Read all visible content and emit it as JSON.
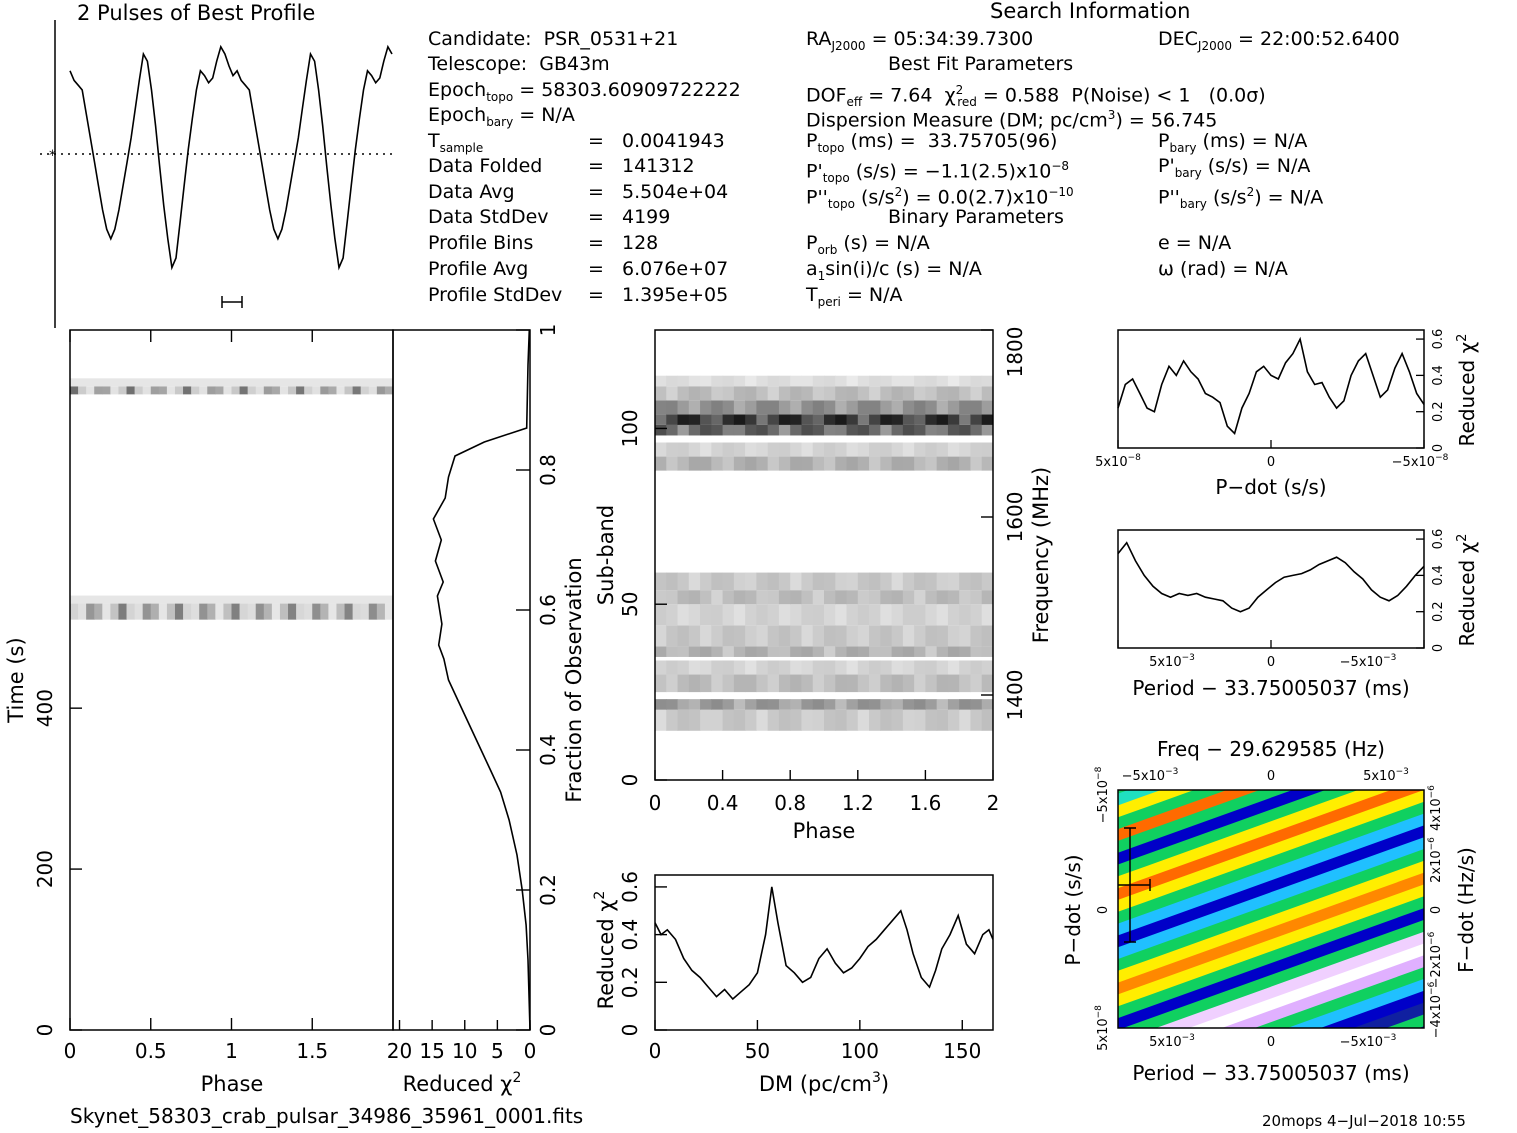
{
  "title": "2 Pulses of Best Profile",
  "search_heading": "Search Information",
  "best_fit_heading": "Best Fit Parameters",
  "binary_heading": "Binary Parameters",
  "candidate": {
    "label": "Candidate:",
    "value": "PSR_0531+21"
  },
  "telescope": {
    "label": "Telescope:",
    "value": "GB43m"
  },
  "epoch_topo": {
    "label": "Epoch",
    "sub": "topo",
    "value": "= 58303.60909722222"
  },
  "epoch_bary": {
    "label": "Epoch",
    "sub": "bary",
    "value": "= N/A"
  },
  "left_params": [
    {
      "label": "T",
      "sub": "sample",
      "eq": "=",
      "value": "0.0041943"
    },
    {
      "label": "Data Folded",
      "sub": "",
      "eq": "=",
      "value": "141312"
    },
    {
      "label": "Data Avg",
      "sub": "",
      "eq": "=",
      "value": "5.504e+04"
    },
    {
      "label": "Data StdDev",
      "sub": "",
      "eq": "=",
      "value": "4199"
    },
    {
      "label": "Profile Bins",
      "sub": "",
      "eq": "=",
      "value": "128"
    },
    {
      "label": "Profile Avg",
      "sub": "",
      "eq": "=",
      "value": "6.076e+07"
    },
    {
      "label": "Profile StdDev",
      "sub": "",
      "eq": "=",
      "value": "1.395e+05"
    }
  ],
  "ra": {
    "label": "RA",
    "sub": "J2000",
    "value": "= 05:34:39.7300"
  },
  "dec": {
    "label": "DEC",
    "sub": "J2000",
    "value": "= 22:00:52.6400"
  },
  "dof": {
    "label": "DOF",
    "sub": "eff",
    "value": "= 7.64"
  },
  "chi2": {
    "label": "χ",
    "sup": "2",
    "sub": "red",
    "value": "= 0.588"
  },
  "pnoise": "P(Noise) < 1   (0.0σ)",
  "dm_line": {
    "text": "Dispersion Measure (DM; pc/cm",
    "sup": "3",
    "tail": ") = 56.745"
  },
  "p_topo": {
    "label": "P",
    "sub": "topo",
    "value": "(ms) =  33.75705(96)"
  },
  "pd_topo": {
    "label": "P'",
    "sub": "topo",
    "value": "(s/s) = −1.1(2.5)x10",
    "exp": "−8"
  },
  "pdd_topo": {
    "label": "P''",
    "sub": "topo",
    "value": "(s/s",
    "vsup": "2",
    "tail": ") = 0.0(2.7)x10",
    "exp": "−10"
  },
  "p_bary": {
    "label": "P",
    "sub": "bary",
    "value": "(ms) = N/A"
  },
  "pd_bary": {
    "label": "P'",
    "sub": "bary",
    "value": "(s/s) = N/A"
  },
  "pdd_bary": {
    "label": "P''",
    "sub": "bary",
    "value": "(s/s",
    "vsup": "2",
    "tail": ") = N/A"
  },
  "p_orb": {
    "label": "P",
    "sub": "orb",
    "value": "(s) = N/A"
  },
  "a1sini": {
    "text": "a",
    "sub": "1",
    "tail": "sin(i)/c (s) = N/A"
  },
  "t_peri": {
    "label": "T",
    "sub": "peri",
    "value": "= N/A"
  },
  "ecc": "e = N/A",
  "omega": "ω (rad) = N/A",
  "footer_file": "Skynet_58303_crab_pulsar_34986_35961_0001.fits",
  "footer_stamp": "20mops   4−Jul−2018 10:55",
  "colors": {
    "ink": "#000000",
    "grid_blue": "#0000c8",
    "grid_orange": "#ff6a00",
    "grid_green": "#10d060"
  },
  "chart_data": [
    {
      "type": "line",
      "name": "profile",
      "title": "2 Pulses of Best Profile",
      "x_range": [
        0,
        2
      ],
      "note": "pulse profile repeated twice; dotted line marks average",
      "values": [
        0.88,
        0.84,
        0.82,
        0.8,
        0.7,
        0.6,
        0.5,
        0.4,
        0.3,
        0.22,
        0.18,
        0.22,
        0.3,
        0.4,
        0.5,
        0.6,
        0.72,
        0.84,
        0.95,
        0.92,
        0.8,
        0.65,
        0.48,
        0.32,
        0.18,
        0.06,
        0.1,
        0.25,
        0.4,
        0.55,
        0.68,
        0.8,
        0.88,
        0.86,
        0.83,
        0.85,
        0.92,
        0.98,
        0.95,
        0.9,
        0.86,
        0.88,
        0.84,
        0.82,
        0.8,
        0.7,
        0.6,
        0.5,
        0.4,
        0.3,
        0.22,
        0.18,
        0.22,
        0.3,
        0.4,
        0.5,
        0.6,
        0.72,
        0.84,
        0.95,
        0.92,
        0.8,
        0.65,
        0.48,
        0.32,
        0.18,
        0.06,
        0.1,
        0.25,
        0.4,
        0.55,
        0.68,
        0.8,
        0.88,
        0.86,
        0.83,
        0.85,
        0.92,
        0.98,
        0.95
      ]
    },
    {
      "type": "heatmap",
      "name": "time-phase",
      "xlabel": "Phase",
      "ylabel": "Time (s)",
      "xlim": [
        0,
        2
      ],
      "ylim": [
        0,
        870
      ],
      "x_ticks": [
        "0",
        "0.5",
        "1",
        "1.5"
      ],
      "y_ticks": [
        "0",
        "200",
        "400"
      ],
      "dark_bands_time": [
        [
          790,
          800
        ],
        [
          510,
          530
        ]
      ]
    },
    {
      "type": "line",
      "name": "reduced-chi2-vs-time",
      "xlabel": "Reduced χ",
      "xlabel_sup": "2",
      "ylabel": "Fraction of Observation",
      "x_ticks": [
        "20",
        "15",
        "10",
        "5",
        "0"
      ],
      "y_ticks": [
        "0",
        "0.2",
        "0.4",
        "0.6",
        "0.8",
        "1"
      ],
      "x": [
        0,
        0.3,
        0.6,
        1.2,
        2.0,
        3.2,
        4.5,
        6.0,
        7.5,
        9.0,
        10.5,
        11.5,
        12.5,
        13.2,
        14.0,
        13.5,
        14.2,
        13.3,
        14.5,
        13.6,
        14.8,
        13.0,
        12.5,
        11.5,
        7.0,
        0.5,
        0.3,
        0.1
      ],
      "y": [
        0,
        0.1,
        0.15,
        0.2,
        0.25,
        0.3,
        0.34,
        0.37,
        0.4,
        0.43,
        0.46,
        0.48,
        0.5,
        0.53,
        0.55,
        0.58,
        0.62,
        0.64,
        0.67,
        0.7,
        0.73,
        0.76,
        0.79,
        0.82,
        0.84,
        0.86,
        0.95,
        1.0
      ]
    },
    {
      "type": "heatmap",
      "name": "subband-phase",
      "xlabel": "Phase",
      "ylabel": "Sub-band",
      "right_label": "Frequency (MHz)",
      "x_ticks": [
        "0",
        "0.4",
        "0.8",
        "1.2",
        "1.6",
        "2"
      ],
      "y_ticks": [
        "0",
        "50",
        "100"
      ],
      "right_ticks": [
        "1400",
        "1600",
        "1800"
      ],
      "xlim": [
        0,
        2
      ],
      "ylim": [
        0,
        128
      ],
      "band_rows": [
        [
          14,
          20,
          0.25
        ],
        [
          20,
          23,
          0.45
        ],
        [
          25,
          30,
          0.3
        ],
        [
          30,
          34,
          0.2
        ],
        [
          35,
          38,
          0.35
        ],
        [
          38,
          44,
          0.25
        ],
        [
          44,
          50,
          0.2
        ],
        [
          50,
          54,
          0.3
        ],
        [
          54,
          59,
          0.25
        ],
        [
          88,
          92,
          0.35
        ],
        [
          92,
          96,
          0.2
        ],
        [
          98,
          101,
          0.7
        ],
        [
          101,
          104,
          0.9
        ],
        [
          104,
          108,
          0.5
        ],
        [
          108,
          112,
          0.3
        ],
        [
          112,
          115,
          0.15
        ]
      ]
    },
    {
      "type": "line",
      "name": "dm-chi2",
      "xlabel": "DM (pc/cm",
      "xlabel_sup": "3",
      "xlabel_tail": ")",
      "ylabel": "Reduced χ",
      "ylabel_sup": "2",
      "x_ticks": [
        "0",
        "50",
        "100",
        "150"
      ],
      "y_ticks": [
        "0",
        "0.2",
        "0.4",
        "0.6"
      ],
      "xlim": [
        0,
        165
      ],
      "ylim": [
        0,
        0.65
      ],
      "x": [
        0,
        3,
        6,
        10,
        14,
        18,
        22,
        26,
        30,
        34,
        38,
        42,
        46,
        50,
        54,
        57,
        60,
        64,
        68,
        72,
        76,
        80,
        84,
        88,
        92,
        96,
        100,
        104,
        108,
        112,
        116,
        120,
        123,
        126,
        130,
        134,
        137,
        140,
        144,
        148,
        152,
        156,
        160,
        163,
        165
      ],
      "y": [
        0.45,
        0.4,
        0.42,
        0.38,
        0.3,
        0.25,
        0.22,
        0.18,
        0.14,
        0.17,
        0.13,
        0.16,
        0.19,
        0.24,
        0.4,
        0.6,
        0.45,
        0.27,
        0.24,
        0.2,
        0.22,
        0.3,
        0.34,
        0.28,
        0.24,
        0.26,
        0.3,
        0.35,
        0.38,
        0.42,
        0.46,
        0.5,
        0.42,
        0.32,
        0.22,
        0.18,
        0.25,
        0.34,
        0.4,
        0.48,
        0.36,
        0.32,
        0.4,
        0.42,
        0.38
      ]
    },
    {
      "type": "line",
      "name": "pdot-chi2",
      "xlabel": "P−dot (s/s)",
      "ylabel": "Reduced χ",
      "ylabel_sup": "2",
      "x_ticks": [
        "5x10",
        "0",
        "−5x10"
      ],
      "x_tick_exp": "−8",
      "y_ticks": [
        "0",
        "0.2",
        "0.4",
        "0.6"
      ],
      "ylim": [
        0,
        0.65
      ],
      "values": [
        0.22,
        0.35,
        0.38,
        0.3,
        0.22,
        0.2,
        0.35,
        0.45,
        0.4,
        0.48,
        0.42,
        0.38,
        0.3,
        0.28,
        0.25,
        0.12,
        0.08,
        0.22,
        0.3,
        0.42,
        0.45,
        0.4,
        0.38,
        0.47,
        0.52,
        0.6,
        0.42,
        0.35,
        0.36,
        0.28,
        0.22,
        0.26,
        0.4,
        0.48,
        0.52,
        0.4,
        0.28,
        0.32,
        0.44,
        0.52,
        0.42,
        0.3,
        0.24
      ]
    },
    {
      "type": "line",
      "name": "period-chi2",
      "xlabel": "Period − 33.75005037 (ms)",
      "ylabel": "Reduced χ",
      "ylabel_sup": "2",
      "x_ticks": [
        "5x10",
        "0",
        "−5x10"
      ],
      "x_tick_exp": "−3",
      "y_ticks": [
        "0",
        "0.2",
        "0.4",
        "0.6"
      ],
      "ylim": [
        0,
        0.65
      ],
      "values": [
        0.52,
        0.58,
        0.48,
        0.4,
        0.34,
        0.3,
        0.28,
        0.3,
        0.29,
        0.3,
        0.28,
        0.27,
        0.26,
        0.22,
        0.2,
        0.22,
        0.28,
        0.32,
        0.36,
        0.39,
        0.4,
        0.41,
        0.43,
        0.46,
        0.48,
        0.5,
        0.47,
        0.42,
        0.38,
        0.32,
        0.28,
        0.26,
        0.29,
        0.34,
        0.4,
        0.45
      ]
    },
    {
      "type": "heatmap",
      "name": "pdot-period-grid",
      "title": "Freq − 29.629585 (Hz)",
      "xlabel": "Period − 33.75005037 (ms)",
      "ylabel": "P−dot (s/s)",
      "right_label": "F−dot (Hz/s)",
      "x_ticks": [
        "5x10",
        "0",
        "−5x10"
      ],
      "x_tick_exp": "−3",
      "top_ticks": [
        "−5x10",
        "0",
        "5x10"
      ],
      "top_tick_exp": "−3",
      "y_ticks": [
        "5x10",
        "0",
        "−5x10"
      ],
      "y_tick_exp": "−8",
      "right_ticks": [
        "−4x10",
        "−2x10",
        "0",
        "2x10",
        "4x10"
      ],
      "right_tick_exp": "−6",
      "stripes": [
        "#0000c8",
        "#10d060",
        "#20e0c0",
        "#ffee00",
        "#10d060",
        "#ff6a00",
        "#10d060",
        "#0000c8",
        "#10d060",
        "#ffee00",
        "#ff6a00",
        "#ffee00",
        "#10d060",
        "#20c0ff",
        "#0000c8",
        "#20c0ff",
        "#10d060",
        "#ffee00",
        "#ff8800",
        "#ffee00",
        "#10d060",
        "#0000c8",
        "#10d060",
        "#f0d0ff",
        "#ffffff",
        "#e0b0ff",
        "#10d060",
        "#20c0ff",
        "#0000c8",
        "#1020a0",
        "#10d060",
        "#0000c8"
      ]
    }
  ]
}
